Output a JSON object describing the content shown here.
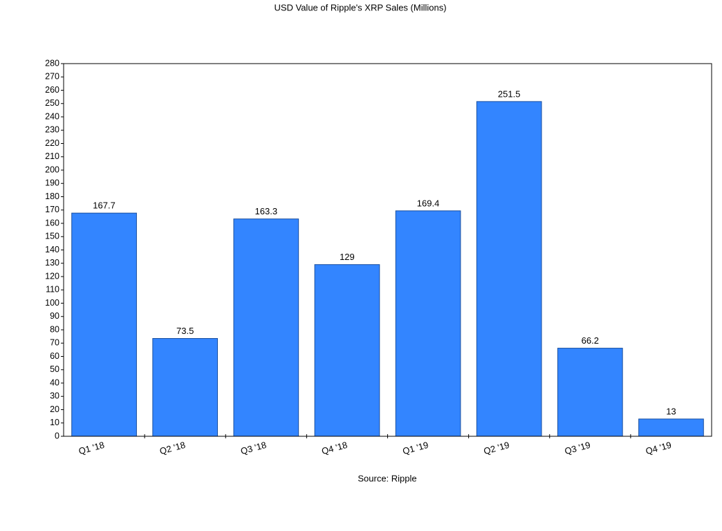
{
  "chart_data": {
    "type": "bar",
    "title": "USD Value of Ripple's XRP Sales (Millions)",
    "x_label": "Source: Ripple",
    "categories": [
      "Q1 '18",
      "Q2 '18",
      "Q3 '18",
      "Q4 '18",
      "Q1 '19",
      "Q2 '19",
      "Q3 '19",
      "Q4 '19"
    ],
    "values": [
      167.7,
      73.5,
      163.3,
      129,
      169.4,
      251.5,
      66.2,
      13
    ],
    "color": "#3385ff",
    "ylim": [
      0,
      280
    ],
    "yticks": [
      0,
      10,
      20,
      30,
      40,
      50,
      60,
      70,
      80,
      90,
      100,
      110,
      120,
      130,
      140,
      150,
      160,
      170,
      180,
      190,
      200,
      210,
      220,
      230,
      240,
      250,
      260,
      270,
      280
    ],
    "grid": false
  }
}
